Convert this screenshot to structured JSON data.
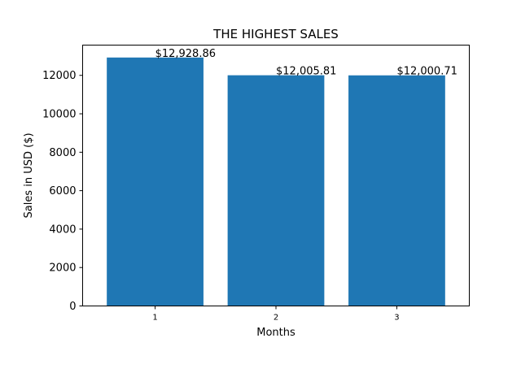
{
  "chart_data": {
    "type": "bar",
    "title": "THE HIGHEST SALES",
    "xlabel": "Months",
    "ylabel": "Sales in USD ($)",
    "categories": [
      "1",
      "2",
      "3"
    ],
    "values": [
      12928.86,
      12005.81,
      12000.71
    ],
    "data_labels": [
      "$12,928.86",
      "$12,005.81",
      "$12,000.71"
    ],
    "ylim": [
      0,
      13575
    ],
    "yticks": [
      0,
      2000,
      4000,
      6000,
      8000,
      10000,
      12000
    ],
    "ytick_labels": [
      "0",
      "2000",
      "4000",
      "6000",
      "8000",
      "10000",
      "12000"
    ],
    "bar_color": "#1f77b4",
    "grid": false,
    "legend": "none"
  }
}
